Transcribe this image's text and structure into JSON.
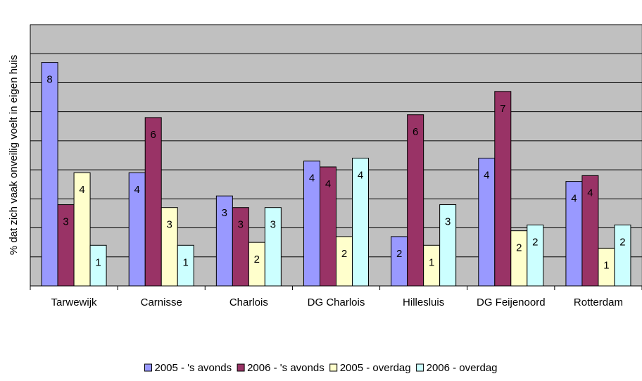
{
  "chart_data": {
    "type": "bar",
    "y_label": "% dat zich vaak onveilig voelt in eigen huis",
    "categories": [
      "Tarwewijk",
      "Carnisse",
      "Charlois",
      "DG Charlois",
      "Hillesluis",
      "DG Feijenoord",
      "Rotterdam"
    ],
    "series": [
      {
        "name": "2005 - 's avonds",
        "color": "#9999ff",
        "values": [
          7.7,
          3.9,
          3.1,
          4.3,
          1.7,
          4.4,
          3.6
        ],
        "value_labels": [
          "8",
          "4",
          "3",
          "4",
          "2",
          "4",
          "4"
        ]
      },
      {
        "name": "2006 - 's avonds",
        "color": "#993366",
        "values": [
          2.8,
          5.8,
          2.7,
          4.1,
          5.9,
          6.7,
          3.8
        ],
        "value_labels": [
          "3",
          "6",
          "3",
          "4",
          "6",
          "7",
          "4"
        ]
      },
      {
        "name": "2005 - overdag",
        "color": "#ffffcc",
        "values": [
          3.9,
          2.7,
          1.5,
          1.7,
          1.4,
          1.9,
          1.3
        ],
        "value_labels": [
          "4",
          "3",
          "2",
          "2",
          "1",
          "2",
          "1"
        ]
      },
      {
        "name": "2006 - overdag",
        "color": "#ccffff",
        "values": [
          1.4,
          1.4,
          2.7,
          4.4,
          2.8,
          2.1,
          2.1
        ],
        "value_labels": [
          "1",
          "1",
          "3",
          "4",
          "3",
          "2",
          "2"
        ]
      }
    ],
    "ylim": [
      0,
      9
    ],
    "yticks": [
      0,
      1,
      2,
      3,
      4,
      5,
      6,
      7,
      8,
      9
    ],
    "grid": true,
    "plot_background": "#c0c0c0",
    "legend": "bottom"
  }
}
